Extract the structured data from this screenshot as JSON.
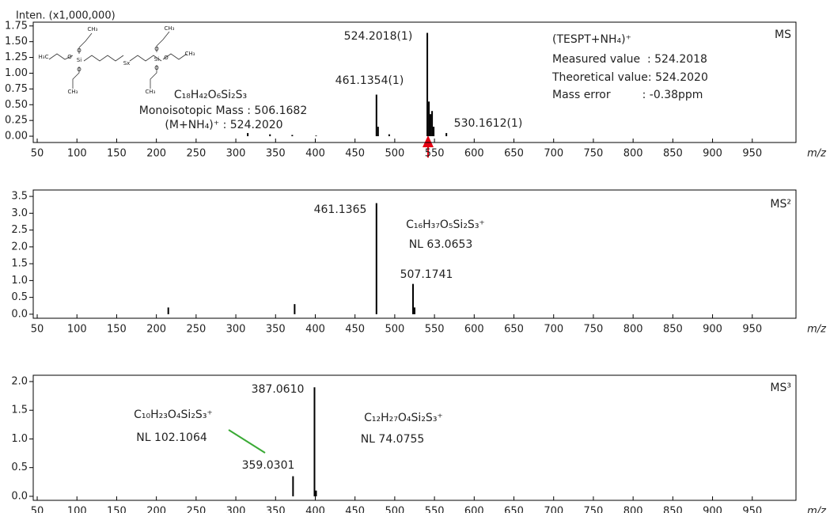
{
  "chart_data": [
    {
      "type": "bar",
      "y_label": "Inten. (x1,000,000)",
      "x_label": "m/z",
      "color": "#000000",
      "x": [
        315,
        343,
        371,
        401,
        477,
        479,
        493,
        541,
        543,
        545,
        547,
        549,
        565
      ],
      "values": [
        0.05,
        0.03,
        0.02,
        0.01,
        0.66,
        0.15,
        0.03,
        1.64,
        0.55,
        0.35,
        0.4,
        0.15,
        0.05
      ],
      "xlim": [
        45,
        1005
      ],
      "ylim": [
        -0.1,
        1.81
      ],
      "xticks": [
        50,
        100,
        150,
        200,
        250,
        300,
        350,
        400,
        450,
        500,
        550,
        600,
        650,
        700,
        750,
        800,
        850,
        900,
        950
      ],
      "yticks": [
        {
          "value": 0,
          "label": "0.00"
        },
        0.25,
        {
          "value": 0.5,
          "label": "0.50"
        },
        0.75,
        {
          "value": 1,
          "label": "1.00"
        },
        1.25,
        {
          "value": 1.5,
          "label": "1.50"
        },
        1.75
      ],
      "structure": [
        "CH₃",
        "O",
        "H₃C",
        "O",
        "Si",
        "O",
        "CH₃",
        "Sx",
        "CH₃",
        "O",
        "Si",
        "O",
        "CH₃",
        "O",
        "CH₃"
      ],
      "annotations": [
        {
          "text": "524.2018(1)",
          "color": "#3aaa35"
        },
        {
          "text": "461.1354(1)",
          "color": "#3aaa35"
        },
        {
          "text": "530.1612(1)",
          "color": "#3aaa35"
        },
        {
          "text": "(TESPT+NH₄)⁺",
          "color": "#222222"
        },
        {
          "text": "Measured value  : 524.2018",
          "color": "#222222"
        },
        {
          "text": "Theoretical value: 524.2020",
          "color": "#222222"
        },
        {
          "text": "Mass error         : -0.38ppm",
          "color": "#222222"
        },
        {
          "text": "C₁₈H₄₂O₆Si₂S₃",
          "color": "#222222"
        },
        {
          "text": "Monoisotopic Mass : 506.1682",
          "color": "#222222"
        },
        {
          "text": "(M+NH₄)⁺ : 524.2020",
          "color": "#222222"
        },
        {
          "text": "MS",
          "color": "#222222"
        }
      ]
    },
    {
      "type": "bar",
      "x_label": "m/z",
      "color": "#000000",
      "x": [
        215,
        374,
        477,
        523,
        525
      ],
      "values": [
        0.2,
        0.3,
        3.3,
        0.9,
        0.2
      ],
      "xlim": [
        45,
        1005
      ],
      "ylim": [
        -0.12,
        3.69
      ],
      "xticks": [
        50,
        100,
        150,
        200,
        250,
        300,
        350,
        400,
        450,
        500,
        550,
        600,
        650,
        700,
        750,
        800,
        850,
        900,
        950
      ],
      "yticks": [
        {
          "value": 0,
          "label": "0.0"
        },
        0.5,
        {
          "value": 1,
          "label": "1.0"
        },
        1.5,
        {
          "value": 2,
          "label": "2.0"
        },
        2.5,
        {
          "value": 3,
          "label": "3.0"
        },
        3.5
      ],
      "annotations": [
        {
          "text": "461.1365",
          "color": "#3aaa35"
        },
        {
          "text": "C₁₆H₃₇O₅Si₂S₃⁺",
          "color": "#222222"
        },
        {
          "text": "NL 63.0653",
          "color": "#222222"
        },
        {
          "text": "507.1741",
          "color": "#3aaa35"
        },
        {
          "text": "MS²",
          "color": "#222222"
        }
      ]
    },
    {
      "type": "bar",
      "x_label": "m/z",
      "color": "#000000",
      "x": [
        372,
        399,
        401
      ],
      "values": [
        0.35,
        1.9,
        0.1
      ],
      "xlim": [
        45,
        1005
      ],
      "ylim": [
        -0.07,
        2.11
      ],
      "xticks": [
        50,
        100,
        150,
        200,
        250,
        300,
        350,
        400,
        450,
        500,
        550,
        600,
        650,
        700,
        750,
        800,
        850,
        900,
        950
      ],
      "yticks": [
        {
          "value": 0,
          "label": "0.0"
        },
        0.5,
        {
          "value": 1,
          "label": "1.0"
        },
        1.5,
        {
          "value": 2,
          "label": "2.0"
        }
      ],
      "annotations": [
        {
          "text": "387.0610",
          "color": "#3aaa35"
        },
        {
          "text": "C₁₀H₂₃O₄Si₂S₃⁺",
          "color": "#222222"
        },
        {
          "text": "NL 102.1064",
          "color": "#222222"
        },
        {
          "text": "359.0301",
          "color": "#3aaa35"
        },
        {
          "text": "C₁₂H₂₇O₄Si₂S₃⁺",
          "color": "#222222"
        },
        {
          "text": "NL 74.0755",
          "color": "#222222"
        },
        {
          "text": "MS³",
          "color": "#222222"
        }
      ]
    }
  ]
}
